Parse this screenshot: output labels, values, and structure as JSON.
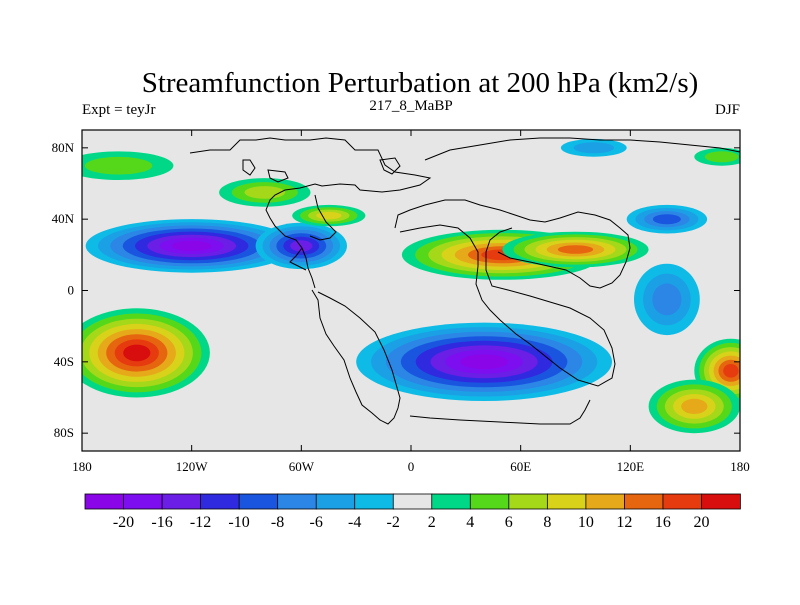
{
  "chart_data": {
    "type": "contour-map",
    "title": "Streamfunction Perturbation at 200 hPa (km2/s)",
    "left_label": "Expt = teyJr",
    "center_label": "217_8_MaBP",
    "right_label": "DJF",
    "x_axis": {
      "range": [
        -180,
        180
      ],
      "ticks": [
        {
          "value": -180,
          "label": "180"
        },
        {
          "value": -120,
          "label": "120W"
        },
        {
          "value": -60,
          "label": "60W"
        },
        {
          "value": 0,
          "label": "0"
        },
        {
          "value": 60,
          "label": "60E"
        },
        {
          "value": 120,
          "label": "120E"
        },
        {
          "value": 180,
          "label": "180"
        }
      ]
    },
    "y_axis": {
      "range": [
        -90,
        90
      ],
      "ticks": [
        {
          "value": 80,
          "label": "80N"
        },
        {
          "value": 40,
          "label": "40N"
        },
        {
          "value": 0,
          "label": "0"
        },
        {
          "value": -40,
          "label": "40S"
        },
        {
          "value": -80,
          "label": "80S"
        }
      ]
    },
    "colorbar": {
      "colors": [
        "#8a05e8",
        "#7d0ef0",
        "#6a1ee6",
        "#2f2ae0",
        "#1a55e0",
        "#2b86e6",
        "#1ba0e6",
        "#0dbbe6",
        "#e6e6e6",
        "#00d887",
        "#56d81a",
        "#a6d81a",
        "#d8d21a",
        "#e6a91a",
        "#e6650f",
        "#e63b0f",
        "#d80d0d"
      ],
      "labels": [
        "-20",
        "-16",
        "-12",
        "-10",
        "-8",
        "-6",
        "-4",
        "-2",
        "2",
        "4",
        "6",
        "8",
        "10",
        "12",
        "16",
        "20"
      ]
    },
    "features": [
      {
        "lon": 50,
        "lat": 20,
        "value": 16,
        "rx": 55,
        "ry": 14
      },
      {
        "lon": 90,
        "lat": 23,
        "value": 12,
        "rx": 40,
        "ry": 10
      },
      {
        "lon": -120,
        "lat": 25,
        "value": -20,
        "rx": 58,
        "ry": 15
      },
      {
        "lon": -60,
        "lat": 25,
        "value": -12,
        "rx": 25,
        "ry": 13
      },
      {
        "lon": 40,
        "lat": -40,
        "value": -20,
        "rx": 70,
        "ry": 22
      },
      {
        "lon": 140,
        "lat": 40,
        "value": -8,
        "rx": 22,
        "ry": 8
      },
      {
        "lon": -150,
        "lat": -35,
        "value": 20,
        "rx": 40,
        "ry": 25
      },
      {
        "lon": -45,
        "lat": 42,
        "value": 8,
        "rx": 20,
        "ry": 6
      },
      {
        "lon": -160,
        "lat": 70,
        "value": 4,
        "rx": 30,
        "ry": 8
      },
      {
        "lon": 100,
        "lat": 80,
        "value": -4,
        "rx": 18,
        "ry": 5
      },
      {
        "lon": 170,
        "lat": 75,
        "value": 4,
        "rx": 15,
        "ry": 5
      },
      {
        "lon": 175,
        "lat": -45,
        "value": 16,
        "rx": 20,
        "ry": 18
      },
      {
        "lon": 155,
        "lat": -65,
        "value": 10,
        "rx": 25,
        "ry": 15
      },
      {
        "lon": -80,
        "lat": 55,
        "value": 6,
        "rx": 25,
        "ry": 8
      },
      {
        "lon": 140,
        "lat": -5,
        "value": -6,
        "rx": 18,
        "ry": 20
      }
    ]
  }
}
